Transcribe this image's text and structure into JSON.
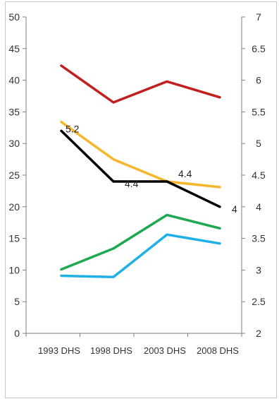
{
  "chart_data": {
    "type": "line",
    "categories": [
      "1993 DHS",
      "1998 DHS",
      "2003 DHS",
      "2008 DHS"
    ],
    "y_left": {
      "ylim": [
        0,
        50
      ],
      "ticks": [
        0,
        5,
        10,
        15,
        20,
        25,
        30,
        35,
        40,
        45,
        50
      ]
    },
    "y_right": {
      "ylim": [
        2,
        7
      ],
      "ticks": [
        "2",
        "2.5",
        "3",
        "3.5",
        "4",
        "4.5",
        "5",
        "5.5",
        "6",
        "6.5",
        "7"
      ]
    },
    "grid": false,
    "legend": "none",
    "series": [
      {
        "color": "#c0201f",
        "axis": "left",
        "values": [
          42.3,
          36.5,
          39.8,
          37.3
        ],
        "labels": []
      },
      {
        "color": "#f6b72d",
        "axis": "left",
        "values": [
          33.4,
          27.5,
          24,
          23.1
        ],
        "labels": []
      },
      {
        "color": "#000000",
        "axis": "right",
        "values": [
          5.2,
          4.4,
          4.4,
          4
        ],
        "labels": [
          "5.2",
          "4.4",
          "4.4",
          "4"
        ]
      },
      {
        "color": "#1ea851",
        "axis": "left",
        "values": [
          10.1,
          13.4,
          18.7,
          16.6
        ],
        "labels": []
      },
      {
        "color": "#1fb0e6",
        "axis": "left",
        "values": [
          9.1,
          8.9,
          15.6,
          14.2
        ],
        "labels": []
      }
    ]
  }
}
